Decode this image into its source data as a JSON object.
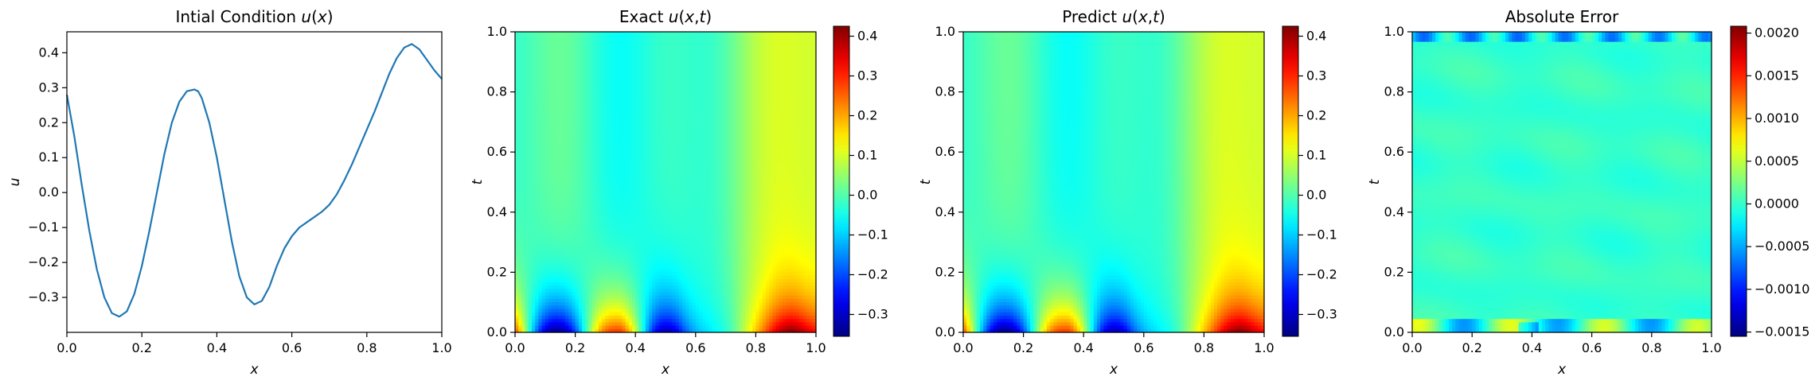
{
  "chart_data": [
    {
      "type": "line",
      "title": "Intial Condition u(x)",
      "xlabel": "x",
      "ylabel": "u",
      "xlim": [
        0,
        1
      ],
      "ylim": [
        -0.4,
        0.46
      ],
      "xticks": [
        "0.0",
        "0.2",
        "0.4",
        "0.6",
        "0.8",
        "1.0"
      ],
      "yticks": [
        "−0.3",
        "−0.2",
        "−0.1",
        "0.0",
        "0.1",
        "0.2",
        "0.3",
        "0.4"
      ],
      "ytick_values": [
        -0.3,
        -0.2,
        -0.1,
        0.0,
        0.1,
        0.2,
        0.3,
        0.4
      ],
      "series": [
        {
          "color": "#1f77b4",
          "x": [
            0.0,
            0.02,
            0.04,
            0.06,
            0.08,
            0.1,
            0.12,
            0.14,
            0.16,
            0.18,
            0.2,
            0.22,
            0.24,
            0.26,
            0.28,
            0.3,
            0.32,
            0.34,
            0.35,
            0.36,
            0.38,
            0.4,
            0.42,
            0.44,
            0.46,
            0.48,
            0.5,
            0.52,
            0.54,
            0.56,
            0.58,
            0.6,
            0.62,
            0.64,
            0.66,
            0.68,
            0.7,
            0.72,
            0.74,
            0.76,
            0.78,
            0.8,
            0.82,
            0.84,
            0.86,
            0.88,
            0.9,
            0.92,
            0.94,
            0.96,
            0.98,
            1.0
          ],
          "y": [
            0.28,
            0.16,
            0.02,
            -0.11,
            -0.22,
            -0.3,
            -0.345,
            -0.355,
            -0.34,
            -0.29,
            -0.21,
            -0.11,
            0.0,
            0.11,
            0.2,
            0.26,
            0.29,
            0.295,
            0.29,
            0.27,
            0.2,
            0.1,
            -0.02,
            -0.14,
            -0.24,
            -0.3,
            -0.32,
            -0.31,
            -0.27,
            -0.21,
            -0.16,
            -0.125,
            -0.1,
            -0.085,
            -0.07,
            -0.055,
            -0.035,
            -0.005,
            0.035,
            0.08,
            0.13,
            0.18,
            0.23,
            0.285,
            0.34,
            0.385,
            0.415,
            0.425,
            0.41,
            0.38,
            0.35,
            0.325
          ]
        }
      ]
    },
    {
      "type": "heatmap",
      "title": "Exact u(x,t)",
      "xlabel": "x",
      "ylabel": "t",
      "xlim": [
        0,
        1
      ],
      "ylim": [
        0,
        1
      ],
      "xticks": [
        "0.0",
        "0.2",
        "0.4",
        "0.6",
        "0.8",
        "1.0"
      ],
      "yticks": [
        "0.0",
        "0.2",
        "0.4",
        "0.6",
        "0.8",
        "1.0"
      ],
      "colormap": "jet",
      "colorbar_range": [
        -0.355,
        0.425
      ],
      "colorbar_ticks": [
        "−0.3",
        "−0.2",
        "−0.1",
        "0.0",
        "0.1",
        "0.2",
        "0.3",
        "0.4"
      ],
      "colorbar_tick_values": [
        -0.3,
        -0.2,
        -0.1,
        0.0,
        0.1,
        0.2,
        0.3,
        0.4
      ]
    },
    {
      "type": "heatmap",
      "title": "Predict u(x,t)",
      "xlabel": "x",
      "ylabel": "t",
      "xlim": [
        0,
        1
      ],
      "ylim": [
        0,
        1
      ],
      "xticks": [
        "0.0",
        "0.2",
        "0.4",
        "0.6",
        "0.8",
        "1.0"
      ],
      "yticks": [
        "0.0",
        "0.2",
        "0.4",
        "0.6",
        "0.8",
        "1.0"
      ],
      "colormap": "jet",
      "colorbar_range": [
        -0.355,
        0.425
      ],
      "colorbar_ticks": [
        "−0.3",
        "−0.2",
        "−0.1",
        "0.0",
        "0.1",
        "0.2",
        "0.3",
        "0.4"
      ],
      "colorbar_tick_values": [
        -0.3,
        -0.2,
        -0.1,
        0.0,
        0.1,
        0.2,
        0.3,
        0.4
      ]
    },
    {
      "type": "heatmap",
      "title": "Absolute Error",
      "xlabel": "x",
      "ylabel": "t",
      "xlim": [
        0,
        1
      ],
      "ylim": [
        0,
        1
      ],
      "xticks": [
        "0.0",
        "0.2",
        "0.4",
        "0.6",
        "0.8",
        "1.0"
      ],
      "yticks": [
        "0.0",
        "0.2",
        "0.4",
        "0.6",
        "0.8",
        "1.0"
      ],
      "colormap": "jet",
      "colorbar_range": [
        -0.00155,
        0.00208
      ],
      "colorbar_ticks": [
        "−0.0015",
        "−0.0010",
        "−0.0005",
        "0.0000",
        "0.0005",
        "0.0010",
        "0.0015",
        "0.0020"
      ],
      "colorbar_tick_values": [
        -0.0015,
        -0.001,
        -0.0005,
        0.0,
        0.0005,
        0.001,
        0.0015,
        0.002
      ]
    }
  ]
}
